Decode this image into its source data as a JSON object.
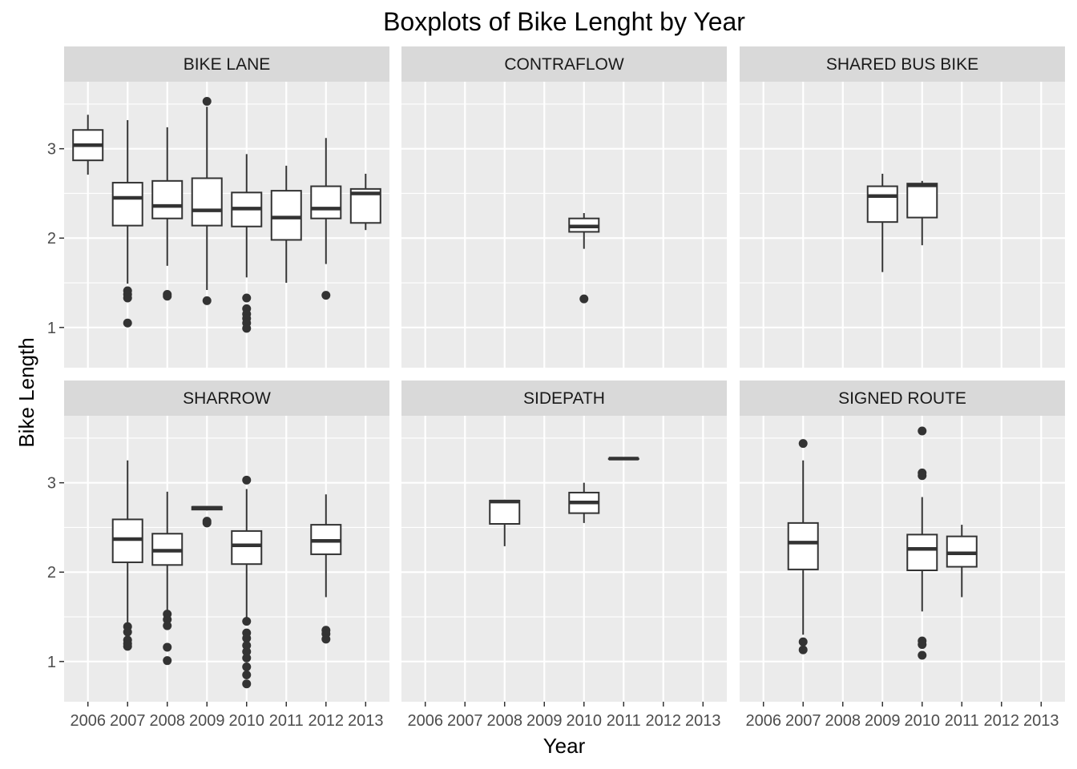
{
  "chart_data": {
    "type": "boxplot",
    "title": "Boxplots of Bike Lenght by Year",
    "xlabel": "Year",
    "ylabel": "Bike Length",
    "years": [
      "2006",
      "2007",
      "2008",
      "2009",
      "2010",
      "2011",
      "2012",
      "2013"
    ],
    "ylim": [
      0.55,
      3.75
    ],
    "yticks": [
      1,
      2,
      3
    ],
    "facet_layout": {
      "rows": 2,
      "cols": 3
    },
    "colors": {
      "panel_background": "#ebebeb",
      "grid": "#ffffff",
      "strip_background": "#d9d9d9",
      "box_fill": "#ffffff",
      "box_stroke": "#333333",
      "outlier": "#333333"
    },
    "facets": [
      {
        "name": "BIKE LANE",
        "boxes": [
          {
            "year": "2006",
            "lower_whisker": 2.71,
            "q1": 2.87,
            "median": 3.04,
            "q3": 3.21,
            "upper_whisker": 3.38,
            "outliers": []
          },
          {
            "year": "2007",
            "lower_whisker": 1.49,
            "q1": 2.14,
            "median": 2.45,
            "q3": 2.62,
            "upper_whisker": 3.32,
            "outliers": [
              1.41,
              1.37,
              1.33,
              1.05
            ]
          },
          {
            "year": "2008",
            "lower_whisker": 1.69,
            "q1": 2.22,
            "median": 2.36,
            "q3": 2.64,
            "upper_whisker": 3.24,
            "outliers": [
              1.37,
              1.35
            ]
          },
          {
            "year": "2009",
            "lower_whisker": 1.42,
            "q1": 2.14,
            "median": 2.31,
            "q3": 2.67,
            "upper_whisker": 3.47,
            "outliers": [
              3.53,
              1.3
            ]
          },
          {
            "year": "2010",
            "lower_whisker": 1.56,
            "q1": 2.13,
            "median": 2.33,
            "q3": 2.51,
            "upper_whisker": 2.94,
            "outliers": [
              1.33,
              1.21,
              1.15,
              1.1,
              1.05,
              0.99
            ]
          },
          {
            "year": "2011",
            "lower_whisker": 1.5,
            "q1": 1.98,
            "median": 2.23,
            "q3": 2.53,
            "upper_whisker": 2.81,
            "outliers": []
          },
          {
            "year": "2012",
            "lower_whisker": 1.71,
            "q1": 2.22,
            "median": 2.33,
            "q3": 2.58,
            "upper_whisker": 3.12,
            "outliers": [
              1.36
            ]
          },
          {
            "year": "2013",
            "lower_whisker": 2.09,
            "q1": 2.17,
            "median": 2.5,
            "q3": 2.55,
            "upper_whisker": 2.72,
            "outliers": []
          }
        ]
      },
      {
        "name": "CONTRAFLOW",
        "boxes": [
          {
            "year": "2010",
            "lower_whisker": 1.88,
            "q1": 2.07,
            "median": 2.13,
            "q3": 2.22,
            "upper_whisker": 2.28,
            "outliers": [
              1.32
            ]
          }
        ]
      },
      {
        "name": "SHARED BUS BIKE",
        "boxes": [
          {
            "year": "2009",
            "lower_whisker": 1.62,
            "q1": 2.18,
            "median": 2.47,
            "q3": 2.58,
            "upper_whisker": 2.72,
            "outliers": []
          },
          {
            "year": "2010",
            "lower_whisker": 1.92,
            "q1": 2.23,
            "median": 2.59,
            "q3": 2.61,
            "upper_whisker": 2.64,
            "outliers": []
          }
        ]
      },
      {
        "name": "SHARROW",
        "boxes": [
          {
            "year": "2007",
            "lower_whisker": 1.42,
            "q1": 2.11,
            "median": 2.37,
            "q3": 2.59,
            "upper_whisker": 3.25,
            "outliers": [
              1.39,
              1.33,
              1.24,
              1.2,
              1.17
            ]
          },
          {
            "year": "2008",
            "lower_whisker": 1.56,
            "q1": 2.08,
            "median": 2.24,
            "q3": 2.43,
            "upper_whisker": 2.9,
            "outliers": [
              1.53,
              1.47,
              1.4,
              1.16,
              1.01
            ]
          },
          {
            "year": "2009",
            "lower_whisker": 2.69,
            "q1": 2.7,
            "median": 2.72,
            "q3": 2.73,
            "upper_whisker": 2.74,
            "outliers": [
              2.57,
              2.55
            ]
          },
          {
            "year": "2010",
            "lower_whisker": 1.48,
            "q1": 2.09,
            "median": 2.3,
            "q3": 2.46,
            "upper_whisker": 2.93,
            "outliers": [
              3.03,
              1.45,
              1.32,
              1.26,
              1.18,
              1.11,
              1.04,
              0.94,
              0.85,
              0.75
            ]
          },
          {
            "year": "2012",
            "lower_whisker": 1.72,
            "q1": 2.2,
            "median": 2.35,
            "q3": 2.53,
            "upper_whisker": 2.87,
            "outliers": [
              1.35,
              1.31,
              1.25
            ]
          }
        ]
      },
      {
        "name": "SIDEPATH",
        "boxes": [
          {
            "year": "2008",
            "lower_whisker": 2.29,
            "q1": 2.54,
            "median": 2.79,
            "q3": 2.8,
            "upper_whisker": 2.81,
            "outliers": []
          },
          {
            "year": "2010",
            "lower_whisker": 2.55,
            "q1": 2.66,
            "median": 2.78,
            "q3": 2.89,
            "upper_whisker": 3.0,
            "outliers": []
          },
          {
            "year": "2011",
            "lower_whisker": 3.27,
            "q1": 3.27,
            "median": 3.27,
            "q3": 3.27,
            "upper_whisker": 3.27,
            "outliers": []
          }
        ]
      },
      {
        "name": "SIGNED ROUTE",
        "boxes": [
          {
            "year": "2007",
            "lower_whisker": 1.3,
            "q1": 2.03,
            "median": 2.33,
            "q3": 2.55,
            "upper_whisker": 3.25,
            "outliers": [
              3.44,
              1.22,
              1.13
            ]
          },
          {
            "year": "2010",
            "lower_whisker": 1.56,
            "q1": 2.02,
            "median": 2.26,
            "q3": 2.42,
            "upper_whisker": 2.84,
            "outliers": [
              3.58,
              3.11,
              3.08,
              1.23,
              1.19,
              1.07
            ]
          },
          {
            "year": "2011",
            "lower_whisker": 1.72,
            "q1": 2.06,
            "median": 2.21,
            "q3": 2.4,
            "upper_whisker": 2.53,
            "outliers": []
          }
        ]
      }
    ]
  }
}
